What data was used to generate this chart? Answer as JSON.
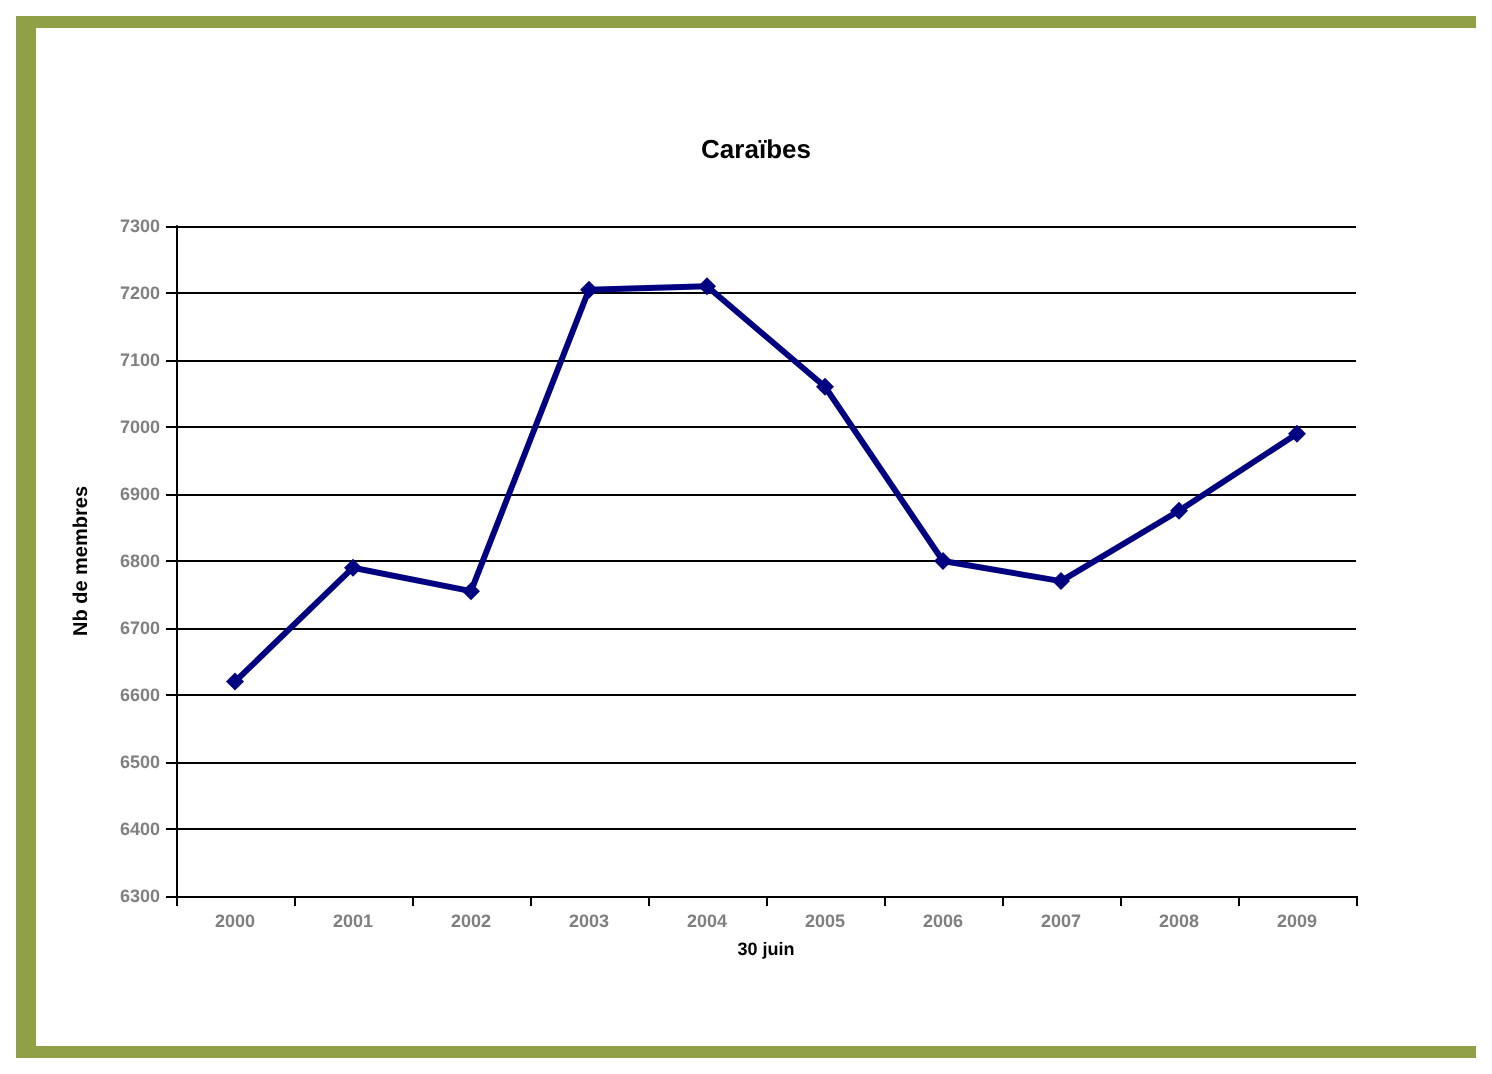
{
  "chart_data": {
    "type": "line",
    "title": "Caraïbes",
    "xlabel": "30 juin",
    "ylabel": "Nb de membres",
    "categories": [
      "2000",
      "2001",
      "2002",
      "2003",
      "2004",
      "2005",
      "2006",
      "2007",
      "2008",
      "2009"
    ],
    "series": [
      {
        "color": "#000080",
        "values": [
          6620,
          6790,
          6755,
          7205,
          7210,
          7060,
          6800,
          6770,
          6875,
          6990
        ]
      }
    ],
    "ylim": [
      6300,
      7300
    ],
    "yticks": [
      6300,
      6400,
      6500,
      6600,
      6700,
      6800,
      6900,
      7000,
      7100,
      7200,
      7300
    ],
    "grid": "y",
    "marker": "diamond",
    "line_style": "solid"
  }
}
